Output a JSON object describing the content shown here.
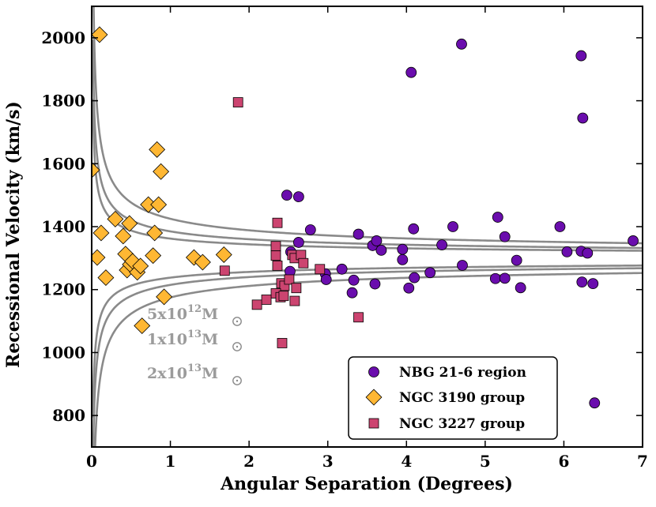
{
  "chart_data": {
    "type": "scatter",
    "xlabel": "Angular Separation (Degrees)",
    "ylabel": "Recessional Velocity (km/s)",
    "xlim": [
      0,
      7
    ],
    "ylim": [
      700,
      2100
    ],
    "xticks": [
      0,
      1,
      2,
      3,
      4,
      5,
      6,
      7
    ],
    "yticks": [
      800,
      1000,
      1200,
      1400,
      1600,
      1800,
      2000
    ],
    "legend_position": "bottom-right",
    "colors": {
      "purple": "#6a0dad",
      "orange": "#ffb733",
      "pink": "#cc4470",
      "curve": "#8a8a8a"
    },
    "curves": [
      {
        "label_prefix": "5x10",
        "exponent": "12",
        "unit": "M",
        "center": 1300,
        "k": 62
      },
      {
        "label_prefix": "1x10",
        "exponent": "13",
        "unit": "M",
        "center": 1300,
        "k": 85
      },
      {
        "label_prefix": "2x10",
        "exponent": "13",
        "unit": "M",
        "center": 1300,
        "k": 125
      }
    ],
    "series": [
      {
        "name": "NBG 21-6 region",
        "marker": "circle",
        "color": "#6a0dad",
        "points": [
          [
            2.48,
            1500
          ],
          [
            2.63,
            1495
          ],
          [
            4.06,
            1890
          ],
          [
            4.7,
            1980
          ],
          [
            6.22,
            1943
          ],
          [
            6.24,
            1745
          ],
          [
            2.53,
            1320
          ],
          [
            2.63,
            1350
          ],
          [
            2.78,
            1390
          ],
          [
            3.39,
            1376
          ],
          [
            3.57,
            1340
          ],
          [
            3.62,
            1355
          ],
          [
            3.68,
            1325
          ],
          [
            3.95,
            1328
          ],
          [
            4.09,
            1393
          ],
          [
            4.45,
            1342
          ],
          [
            4.59,
            1400
          ],
          [
            5.16,
            1430
          ],
          [
            5.25,
            1368
          ],
          [
            5.95,
            1400
          ],
          [
            6.04,
            1320
          ],
          [
            6.22,
            1322
          ],
          [
            6.3,
            1316
          ],
          [
            6.88,
            1355
          ],
          [
            2.52,
            1258
          ],
          [
            2.97,
            1250
          ],
          [
            2.98,
            1232
          ],
          [
            3.18,
            1265
          ],
          [
            3.31,
            1190
          ],
          [
            3.33,
            1230
          ],
          [
            3.6,
            1218
          ],
          [
            3.95,
            1295
          ],
          [
            4.03,
            1205
          ],
          [
            4.1,
            1238
          ],
          [
            4.3,
            1254
          ],
          [
            4.71,
            1277
          ],
          [
            5.13,
            1235
          ],
          [
            5.25,
            1236
          ],
          [
            5.4,
            1293
          ],
          [
            5.45,
            1206
          ],
          [
            6.23,
            1224
          ],
          [
            6.37,
            1219
          ],
          [
            6.39,
            840
          ]
        ]
      },
      {
        "name": "NGC 3190 group",
        "marker": "diamond",
        "color": "#ffb733",
        "points": [
          [
            0.1,
            2010
          ],
          [
            0.83,
            1645
          ],
          [
            0.88,
            1575
          ],
          [
            0.0,
            1580
          ],
          [
            0.72,
            1470
          ],
          [
            0.85,
            1470
          ],
          [
            0.3,
            1424
          ],
          [
            0.48,
            1410
          ],
          [
            0.12,
            1380
          ],
          [
            0.4,
            1370
          ],
          [
            0.8,
            1380
          ],
          [
            0.07,
            1302
          ],
          [
            0.43,
            1313
          ],
          [
            0.78,
            1308
          ],
          [
            0.18,
            1238
          ],
          [
            0.45,
            1262
          ],
          [
            0.49,
            1280
          ],
          [
            0.52,
            1290
          ],
          [
            0.58,
            1255
          ],
          [
            0.62,
            1275
          ],
          [
            1.3,
            1302
          ],
          [
            1.41,
            1287
          ],
          [
            1.68,
            1311
          ],
          [
            0.92,
            1177
          ],
          [
            0.64,
            1085
          ]
        ]
      },
      {
        "name": "NGC 3227 group",
        "marker": "square",
        "color": "#cc4470",
        "points": [
          [
            1.86,
            1795
          ],
          [
            2.36,
            1412
          ],
          [
            2.34,
            1338
          ],
          [
            2.34,
            1308
          ],
          [
            2.36,
            1276
          ],
          [
            2.55,
            1310
          ],
          [
            2.58,
            1300
          ],
          [
            2.66,
            1310
          ],
          [
            2.69,
            1284
          ],
          [
            2.9,
            1265
          ],
          [
            1.69,
            1260
          ],
          [
            2.41,
            1220
          ],
          [
            2.45,
            1212
          ],
          [
            2.51,
            1232
          ],
          [
            2.6,
            1205
          ],
          [
            2.34,
            1188
          ],
          [
            2.4,
            1176
          ],
          [
            2.44,
            1180
          ],
          [
            2.58,
            1164
          ],
          [
            2.22,
            1168
          ],
          [
            2.1,
            1152
          ],
          [
            2.42,
            1030
          ],
          [
            3.39,
            1112
          ]
        ]
      }
    ]
  }
}
